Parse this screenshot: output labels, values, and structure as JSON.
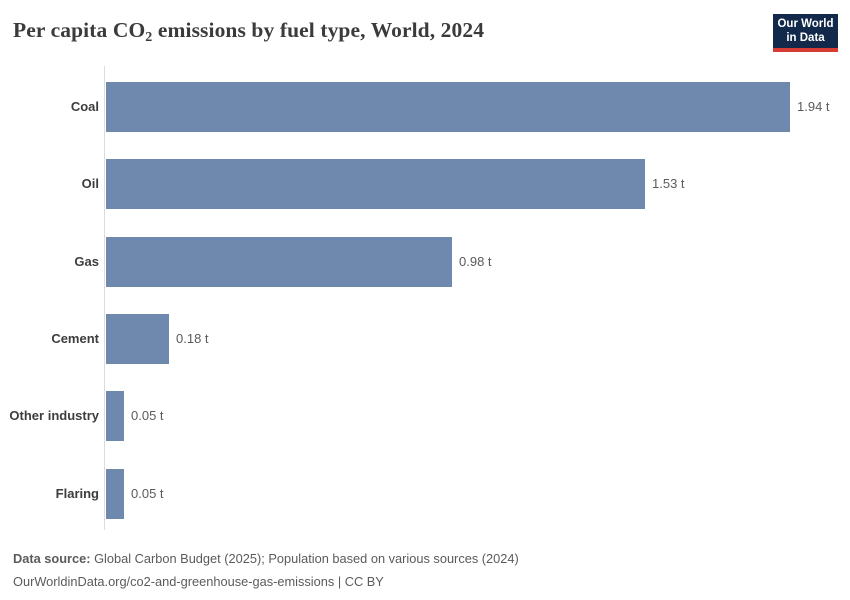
{
  "header": {
    "title_prefix": "Per capita CO",
    "title_sub": "2",
    "title_suffix": " emissions by fuel type, World, 2024",
    "logo": {
      "line1": "Our World",
      "line2": "in Data"
    }
  },
  "chart_data": {
    "type": "bar",
    "orientation": "horizontal",
    "title": "Per capita CO₂ emissions by fuel type, World, 2024",
    "categories": [
      "Coal",
      "Oil",
      "Gas",
      "Cement",
      "Other industry",
      "Flaring"
    ],
    "values": [
      1.94,
      1.53,
      0.98,
      0.18,
      0.05,
      0.05
    ],
    "value_labels": [
      "1.94 t",
      "1.53 t",
      "0.98 t",
      "0.18 t",
      "0.05 t",
      "0.05 t"
    ],
    "unit": "t",
    "xlim": [
      0,
      1.94
    ],
    "grid": false,
    "legend": "none",
    "bar_color": "#6f89ae"
  },
  "footer": {
    "source_label": "Data source:",
    "source_text": " Global Carbon Budget (2025); Population based on various sources (2024)",
    "link_line": "OurWorldinData.org/co2-and-greenhouse-gas-emissions | CC BY"
  },
  "colors": {
    "bar_color": "#6f89ae",
    "axis_color": "#dcdcdc",
    "title_color": "#3b3b3b",
    "label_color": "#3d3d3d",
    "value_color": "#5b5b5b",
    "footer_color": "#5b5b5b",
    "logo_bg": "#12294b",
    "logo_red": "#d73c34"
  }
}
